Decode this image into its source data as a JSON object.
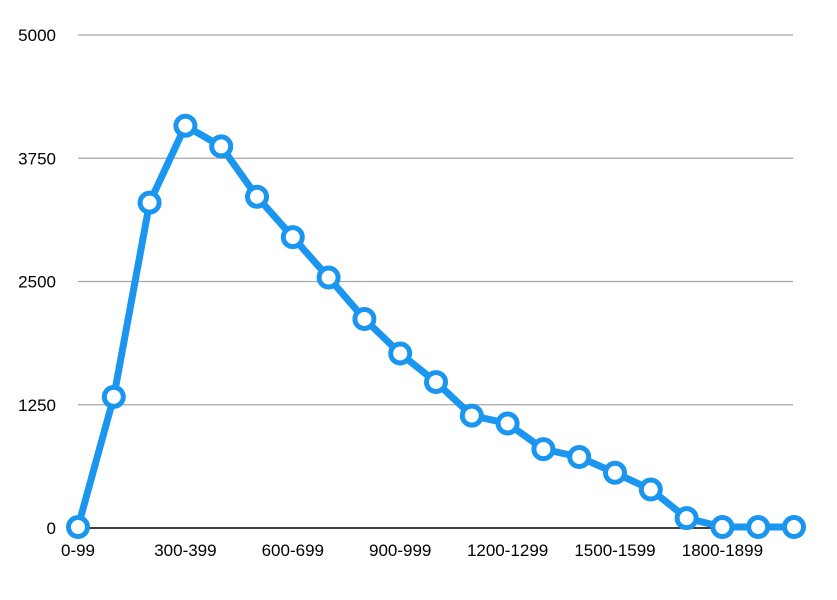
{
  "chart_data": {
    "type": "line",
    "title": "",
    "xlabel": "",
    "ylabel": "",
    "ylim": [
      0,
      5000
    ],
    "yticks": [
      0,
      1250,
      2500,
      3750,
      5000
    ],
    "grid": true,
    "legend": "none",
    "line_color": "#1a96f0",
    "grid_color": "#a6a6a6",
    "categories": [
      "0-99",
      "100-199",
      "200-299",
      "300-399",
      "400-499",
      "500-599",
      "600-699",
      "700-799",
      "800-899",
      "900-999",
      "1000-1099",
      "1100-1199",
      "1200-1299",
      "1300-1399",
      "1400-1499",
      "1500-1599",
      "1600-1699",
      "1700-1799",
      "1800-1899",
      "1900-1999",
      "2000-2099"
    ],
    "shown_tick_labels": [
      "0-99",
      "300-399",
      "600-699",
      "900-999",
      "1200-1299",
      "1500-1599",
      "1800-1899"
    ],
    "values": [
      10,
      1330,
      3300,
      4080,
      3870,
      3360,
      2950,
      2540,
      2120,
      1770,
      1480,
      1140,
      1060,
      800,
      720,
      560,
      390,
      100,
      10,
      10,
      10
    ]
  }
}
